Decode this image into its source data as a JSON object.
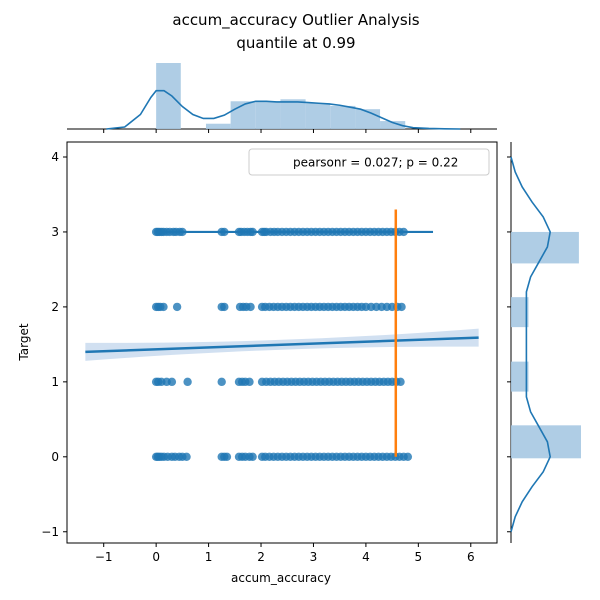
{
  "chart_data": {
    "type": "scatter",
    "title_line1": "accum_accuracy Outlier Analysis",
    "title_line2": "quantile at 0.99",
    "xlabel": "accum_accuracy",
    "ylabel": "Target",
    "xlim": [
      -1.7,
      6.5
    ],
    "ylim": [
      -1.15,
      4.2
    ],
    "xticks": [
      -1,
      0,
      1,
      2,
      3,
      4,
      5,
      6
    ],
    "yticks": [
      -1,
      0,
      1,
      2,
      3,
      4
    ],
    "legend_text": "pearsonr = 0.027; p = 0.22",
    "legend_position": "top-right",
    "colors": {
      "points": "#1f77b4",
      "quantile_line": "#ff7f0e",
      "bars": "#a6c8e2",
      "ci_band": "#c9dbee"
    },
    "regression": {
      "x": [
        -1.35,
        6.15
      ],
      "y": [
        1.4,
        1.59
      ],
      "ci_halfwidth": 0.12
    },
    "quantile_line": {
      "x": 4.57,
      "y": [
        0,
        3.3
      ]
    },
    "scatter_rows": [
      {
        "y": 3,
        "x": [
          0.0,
          0.03,
          0.06,
          0.1,
          0.14,
          0.2,
          0.26,
          0.33,
          0.38,
          0.45,
          0.5,
          1.25,
          1.3,
          1.58,
          1.62,
          1.68,
          1.74,
          1.8,
          1.84,
          2.02,
          2.06,
          2.1,
          2.18,
          2.25,
          2.32,
          2.4,
          2.48,
          2.56,
          2.64,
          2.72,
          2.8,
          2.88,
          2.96,
          3.04,
          3.12,
          3.2,
          3.28,
          3.36,
          3.44,
          3.52,
          3.6,
          3.68,
          3.76,
          3.84,
          3.92,
          4.0,
          4.08,
          4.16,
          4.24,
          4.32,
          4.4,
          4.48,
          4.56,
          4.64,
          4.72
        ]
      },
      {
        "y": 2,
        "x": [
          0.0,
          0.04,
          0.08,
          0.14,
          0.4,
          1.25,
          1.3,
          1.6,
          1.66,
          1.72,
          1.8,
          2.02,
          2.08,
          2.16,
          2.24,
          2.32,
          2.4,
          2.48,
          2.56,
          2.64,
          2.72,
          2.8,
          2.88,
          2.96,
          3.04,
          3.12,
          3.2,
          3.28,
          3.36,
          3.44,
          3.52,
          3.6,
          3.68,
          3.76,
          3.84,
          3.92,
          4.0,
          4.1,
          4.2,
          4.3,
          4.4,
          4.5,
          4.6,
          4.68
        ]
      },
      {
        "y": 1,
        "x": [
          0.0,
          0.04,
          0.1,
          0.2,
          0.3,
          0.6,
          1.25,
          1.58,
          1.64,
          1.7,
          1.78,
          2.02,
          2.1,
          2.18,
          2.26,
          2.34,
          2.42,
          2.5,
          2.58,
          2.66,
          2.74,
          2.82,
          2.9,
          2.98,
          3.06,
          3.14,
          3.22,
          3.3,
          3.38,
          3.46,
          3.54,
          3.62,
          3.7,
          3.78,
          3.86,
          3.94,
          4.02,
          4.1,
          4.18,
          4.26,
          4.34,
          4.42,
          4.5,
          4.58,
          4.66
        ]
      },
      {
        "y": 0,
        "x": [
          0.0,
          0.03,
          0.06,
          0.1,
          0.15,
          0.22,
          0.3,
          0.36,
          0.44,
          0.5,
          0.58,
          1.25,
          1.3,
          1.35,
          1.58,
          1.64,
          1.7,
          1.78,
          1.84,
          2.02,
          2.08,
          2.16,
          2.24,
          2.32,
          2.4,
          2.48,
          2.56,
          2.64,
          2.72,
          2.8,
          2.88,
          2.96,
          3.04,
          3.12,
          3.2,
          3.28,
          3.36,
          3.44,
          3.52,
          3.6,
          3.68,
          3.76,
          3.84,
          3.92,
          4.0,
          4.08,
          4.16,
          4.24,
          4.32,
          4.4,
          4.48,
          4.56,
          4.64,
          4.72,
          4.8
        ]
      }
    ],
    "top_histogram": {
      "bins": [
        {
          "x0": 0.0,
          "x1": 0.47,
          "height": 1.0
        },
        {
          "x0": 0.47,
          "x1": 0.95,
          "height": 0.0
        },
        {
          "x0": 0.95,
          "x1": 1.42,
          "height": 0.08
        },
        {
          "x0": 1.42,
          "x1": 1.9,
          "height": 0.42
        },
        {
          "x0": 1.9,
          "x1": 2.37,
          "height": 0.42
        },
        {
          "x0": 2.37,
          "x1": 2.85,
          "height": 0.45
        },
        {
          "x0": 2.85,
          "x1": 3.32,
          "height": 0.39
        },
        {
          "x0": 3.32,
          "x1": 3.8,
          "height": 0.35
        },
        {
          "x0": 3.8,
          "x1": 4.27,
          "height": 0.3
        },
        {
          "x0": 4.27,
          "x1": 4.75,
          "height": 0.12
        }
      ],
      "kde": {
        "x": [
          -0.95,
          -0.6,
          -0.3,
          -0.1,
          0.0,
          0.15,
          0.3,
          0.5,
          0.7,
          0.9,
          1.1,
          1.3,
          1.5,
          1.7,
          1.9,
          2.1,
          2.3,
          2.5,
          2.7,
          2.9,
          3.1,
          3.3,
          3.5,
          3.7,
          3.9,
          4.1,
          4.3,
          4.5,
          4.7,
          4.9,
          5.2,
          5.5,
          5.8
        ],
        "y": [
          0.0,
          0.03,
          0.22,
          0.48,
          0.58,
          0.58,
          0.5,
          0.34,
          0.22,
          0.16,
          0.16,
          0.21,
          0.3,
          0.38,
          0.42,
          0.42,
          0.41,
          0.41,
          0.41,
          0.4,
          0.39,
          0.38,
          0.36,
          0.33,
          0.3,
          0.24,
          0.17,
          0.1,
          0.05,
          0.02,
          0.008,
          0.003,
          0.0
        ]
      }
    },
    "right_histogram": {
      "bins": [
        {
          "y0": -0.02,
          "y1": 0.42,
          "width": 1.0
        },
        {
          "y0": 0.87,
          "y1": 1.27,
          "width": 0.25
        },
        {
          "y0": 1.73,
          "y1": 2.13,
          "width": 0.25
        },
        {
          "y0": 2.58,
          "y1": 3.0,
          "width": 0.97
        }
      ],
      "kde": {
        "y": [
          -1.0,
          -0.8,
          -0.6,
          -0.4,
          -0.2,
          0.0,
          0.2,
          0.4,
          0.6,
          0.8,
          1.0,
          1.2,
          1.4,
          1.6,
          1.8,
          2.0,
          2.2,
          2.4,
          2.6,
          2.8,
          3.0,
          3.2,
          3.4,
          3.6,
          3.8,
          4.0
        ],
        "x": [
          0.0,
          0.06,
          0.16,
          0.3,
          0.46,
          0.56,
          0.52,
          0.4,
          0.28,
          0.22,
          0.22,
          0.22,
          0.22,
          0.22,
          0.22,
          0.22,
          0.22,
          0.28,
          0.4,
          0.52,
          0.56,
          0.46,
          0.3,
          0.16,
          0.06,
          0.0
        ]
      }
    }
  }
}
